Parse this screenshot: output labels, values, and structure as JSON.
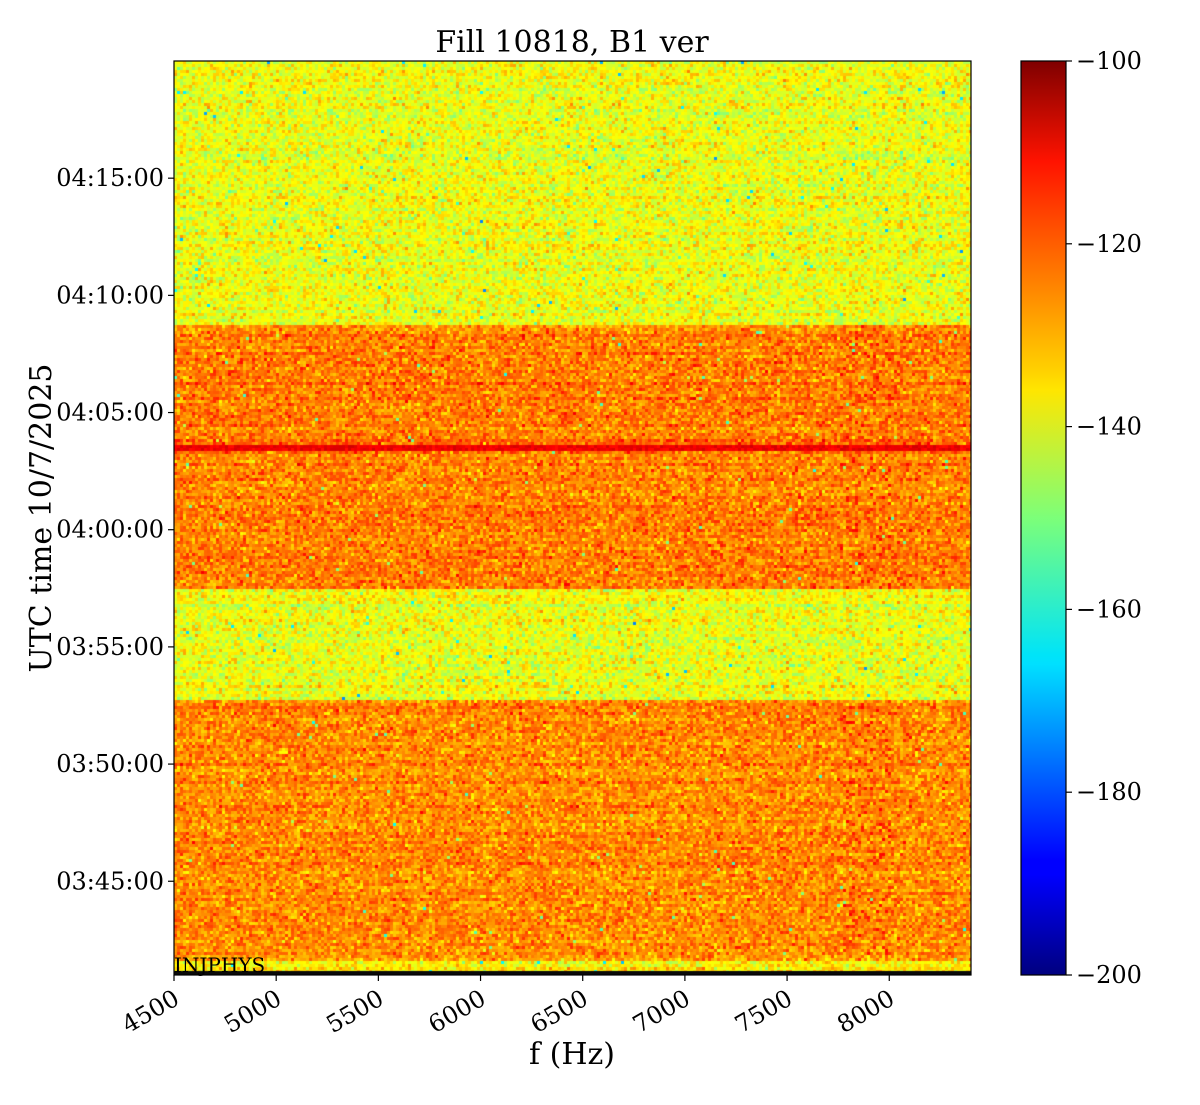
{
  "chart_data": {
    "type": "heatmap",
    "title": "Fill 10818, B1 ver",
    "xlabel": "f (Hz)",
    "ylabel": "UTC time 10/7/2025",
    "x_range": [
      4500,
      8400
    ],
    "y_range": [
      "03:41:00",
      "04:20:00"
    ],
    "x_ticks": [
      "4500",
      "5000",
      "5500",
      "6000",
      "6500",
      "7000",
      "7500",
      "8000"
    ],
    "y_ticks": [
      "03:45:00",
      "03:50:00",
      "03:55:00",
      "04:00:00",
      "04:05:00",
      "04:10:00",
      "04:15:00"
    ],
    "colormap": "jet",
    "colorbar_range": [
      -200,
      -100
    ],
    "colorbar_ticks": [
      "−100",
      "−120",
      "−140",
      "−160",
      "−180",
      "−200"
    ],
    "bands": [
      {
        "start": "03:41:00",
        "end": "03:41:40",
        "level_db": -136
      },
      {
        "start": "03:41:40",
        "end": "03:52:50",
        "level_db": -126
      },
      {
        "start": "03:52:50",
        "end": "03:57:30",
        "level_db": -139
      },
      {
        "start": "03:57:30",
        "end": "04:08:50",
        "level_db": -125
      },
      {
        "start": "04:08:50",
        "end": "04:20:00",
        "level_db": -139
      }
    ],
    "line_feature": {
      "time": "04:03:33",
      "level_db": -108
    },
    "annotation": "INJPHYS"
  }
}
